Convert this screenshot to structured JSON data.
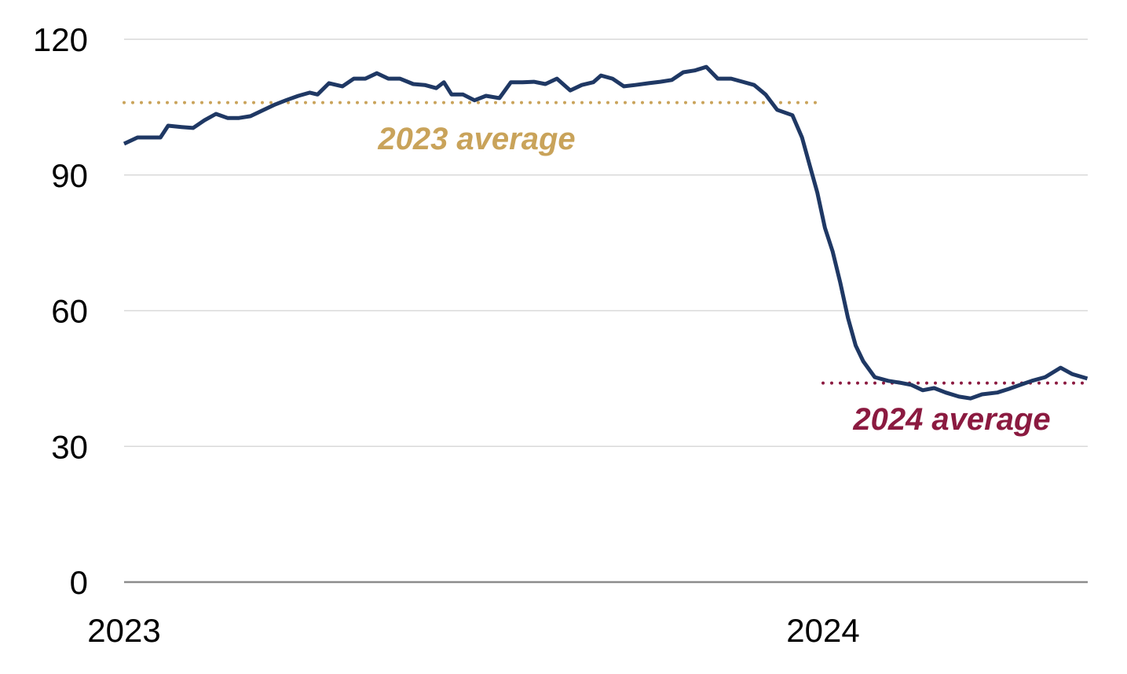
{
  "chart_data": {
    "type": "line",
    "title": "",
    "xlabel": "",
    "ylabel": "",
    "ylim": [
      0,
      120
    ],
    "yticks": [
      "0",
      "30",
      "60",
      "90",
      "120"
    ],
    "xticks": [
      {
        "label": "2023",
        "date": "2023-01-01"
      },
      {
        "label": "2024",
        "date": "2024-01-01"
      }
    ],
    "xlim": [
      "2023-01-01",
      "2024-05-18"
    ],
    "grid": "horizontal",
    "colors": {
      "series": "#1f3864",
      "avg2023": "#c9a35a",
      "avg2024": "#8b1a40",
      "grid": "#d9d9d9",
      "axis": "#8c8c8c"
    },
    "series": [
      {
        "x": [
          "2023-01-01",
          "2023-01-08",
          "2023-01-14",
          "2023-01-20",
          "2023-01-24",
          "2023-01-31",
          "2023-02-06",
          "2023-02-12",
          "2023-02-18",
          "2023-02-24",
          "2023-03-02",
          "2023-03-08",
          "2023-03-15",
          "2023-03-21",
          "2023-03-27",
          "2023-04-02",
          "2023-04-08",
          "2023-04-12",
          "2023-04-18",
          "2023-04-25",
          "2023-05-01",
          "2023-05-07",
          "2023-05-13",
          "2023-05-19",
          "2023-05-25",
          "2023-06-01",
          "2023-06-07",
          "2023-06-13",
          "2023-06-17",
          "2023-06-21",
          "2023-06-27",
          "2023-07-03",
          "2023-07-09",
          "2023-07-16",
          "2023-07-22",
          "2023-07-28",
          "2023-08-03",
          "2023-08-09",
          "2023-08-15",
          "2023-08-22",
          "2023-08-28",
          "2023-09-03",
          "2023-09-07",
          "2023-09-13",
          "2023-09-19",
          "2023-09-25",
          "2023-10-02",
          "2023-10-08",
          "2023-10-14",
          "2023-10-20",
          "2023-10-26",
          "2023-11-01",
          "2023-11-07",
          "2023-11-14",
          "2023-11-20",
          "2023-11-26",
          "2023-12-02",
          "2023-12-08",
          "2023-12-16",
          "2023-12-21",
          "2023-12-25",
          "2023-12-29",
          "2024-01-02",
          "2024-01-06",
          "2024-01-10",
          "2024-01-14",
          "2024-01-18",
          "2024-01-22",
          "2024-01-28",
          "2024-02-04",
          "2024-02-10",
          "2024-02-16",
          "2024-02-22",
          "2024-02-28",
          "2024-03-05",
          "2024-03-12",
          "2024-03-18",
          "2024-03-24",
          "2024-04-01",
          "2024-04-07",
          "2024-04-13",
          "2024-04-19",
          "2024-04-26",
          "2024-05-04",
          "2024-05-10",
          "2024-05-18"
        ],
        "y": [
          96.9,
          98.3,
          98.3,
          98.3,
          100.9,
          100.6,
          100.4,
          102.1,
          103.5,
          102.6,
          102.6,
          103.0,
          104.4,
          105.6,
          106.6,
          107.5,
          108.2,
          107.8,
          110.3,
          109.6,
          111.3,
          111.3,
          112.5,
          111.3,
          111.3,
          110.1,
          109.9,
          109.2,
          110.5,
          107.8,
          107.8,
          106.5,
          107.5,
          107.0,
          110.5,
          110.5,
          110.6,
          110.1,
          111.3,
          108.7,
          109.9,
          110.5,
          112.0,
          111.3,
          109.6,
          109.9,
          110.3,
          110.6,
          111.0,
          112.7,
          113.1,
          113.9,
          111.3,
          111.3,
          110.6,
          109.9,
          107.8,
          104.4,
          103.2,
          98.3,
          92.2,
          86.1,
          78.3,
          73.1,
          66.2,
          58.4,
          52.3,
          48.8,
          45.3,
          44.5,
          44.1,
          43.6,
          42.4,
          42.9,
          41.9,
          41.0,
          40.6,
          41.5,
          41.9,
          42.7,
          43.6,
          44.5,
          45.3,
          47.4,
          46.0,
          45.0
        ]
      }
    ],
    "reference_lines": [
      {
        "label": "2023 average",
        "value": 106,
        "from": "2023-01-01",
        "to": "2023-12-30"
      },
      {
        "label": "2024 average",
        "value": 44,
        "from": "2024-01-01",
        "to": "2024-05-18"
      }
    ]
  }
}
